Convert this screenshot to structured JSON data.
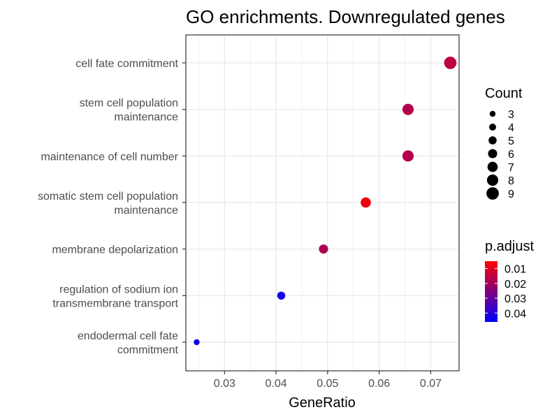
{
  "chart_data": {
    "type": "scatter",
    "title": "GO enrichments. Downregulated genes",
    "xlabel": "GeneRatio",
    "ylabel": "",
    "xlim": [
      0.0225,
      0.0755
    ],
    "x_ticks": [
      {
        "value": 0.03,
        "label": "0.03"
      },
      {
        "value": 0.04,
        "label": "0.04"
      },
      {
        "value": 0.05,
        "label": "0.05"
      },
      {
        "value": 0.06,
        "label": "0.06"
      },
      {
        "value": 0.07,
        "label": "0.07"
      }
    ],
    "grid": true,
    "categories": [
      [
        "cell fate commitment"
      ],
      [
        "stem cell population",
        "maintenance"
      ],
      [
        "maintenance of cell number"
      ],
      [
        "somatic stem cell population",
        "maintenance"
      ],
      [
        "membrane depolarization"
      ],
      [
        "regulation of sodium ion",
        "transmembrane transport"
      ],
      [
        "endodermal cell fate",
        "commitment"
      ]
    ],
    "points": [
      {
        "term": "cell fate commitment",
        "gene_ratio": 0.0738,
        "count": 9,
        "p_adjust": 0.016
      },
      {
        "term": "stem cell population maintenance",
        "gene_ratio": 0.0656,
        "count": 8,
        "p_adjust": 0.017
      },
      {
        "term": "maintenance of cell number",
        "gene_ratio": 0.0656,
        "count": 8,
        "p_adjust": 0.017
      },
      {
        "term": "somatic stem cell population maintenance",
        "gene_ratio": 0.0574,
        "count": 7,
        "p_adjust": 0.008
      },
      {
        "term": "membrane depolarization",
        "gene_ratio": 0.0492,
        "count": 6,
        "p_adjust": 0.018
      },
      {
        "term": "regulation of sodium ion transmembrane transport",
        "gene_ratio": 0.041,
        "count": 5,
        "p_adjust": 0.043
      },
      {
        "term": "endodermal cell fate commitment",
        "gene_ratio": 0.0246,
        "count": 3,
        "p_adjust": 0.044
      }
    ],
    "size_legend": {
      "title": "Count",
      "entries": [
        {
          "count": 3,
          "label": "3"
        },
        {
          "count": 4,
          "label": "4"
        },
        {
          "count": 5,
          "label": "5"
        },
        {
          "count": 6,
          "label": "6"
        },
        {
          "count": 7,
          "label": "7"
        },
        {
          "count": 8,
          "label": "8"
        },
        {
          "count": 9,
          "label": "9"
        }
      ]
    },
    "color_legend": {
      "title": "p.adjust",
      "range": [
        0.005,
        0.046
      ],
      "low_color": "#ff0000",
      "high_color": "#0000ff",
      "ticks": [
        {
          "value": 0.01,
          "label": "0.01"
        },
        {
          "value": 0.02,
          "label": "0.02"
        },
        {
          "value": 0.03,
          "label": "0.03"
        },
        {
          "value": 0.04,
          "label": "0.04"
        }
      ]
    },
    "legend_position": "right"
  }
}
